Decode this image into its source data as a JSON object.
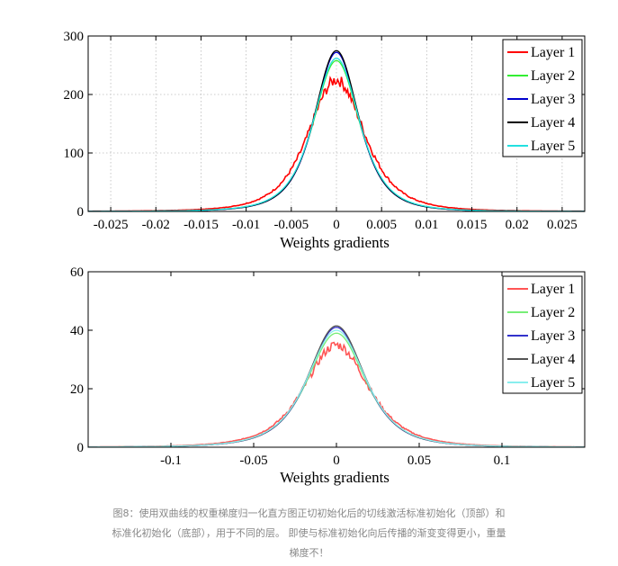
{
  "chart_data": [
    {
      "type": "line",
      "title": "",
      "xlabel": "Weights gradients",
      "ylabel": "",
      "xlim": [
        -0.0275,
        0.0275
      ],
      "ylim": [
        0,
        300
      ],
      "x_ticks": [
        -0.025,
        -0.02,
        -0.015,
        -0.01,
        -0.005,
        0,
        0.005,
        0.01,
        0.015,
        0.02,
        0.025
      ],
      "x_tick_labels": [
        "-0.025",
        "-0.02",
        "-0.015",
        "-0.01",
        "-0.005",
        "0",
        "0.005",
        "0.01",
        "0.015",
        "0.02",
        "0.025"
      ],
      "y_ticks": [
        0,
        100,
        200,
        300
      ],
      "y_tick_labels": [
        "0",
        "100",
        "200",
        "300"
      ],
      "grid": true,
      "legend_position": "top-right",
      "series": [
        {
          "name": "Layer 1",
          "color": "#ff0000",
          "peak": 225,
          "width": 0.0033,
          "noisy": true
        },
        {
          "name": "Layer 2",
          "color": "#33ee33",
          "peak": 258,
          "width": 0.0027,
          "noisy": false
        },
        {
          "name": "Layer 3",
          "color": "#0000cc",
          "peak": 272,
          "width": 0.0026,
          "noisy": false
        },
        {
          "name": "Layer 4",
          "color": "#000000",
          "peak": 275,
          "width": 0.0026,
          "noisy": false
        },
        {
          "name": "Layer 5",
          "color": "#22e0e0",
          "peak": 262,
          "width": 0.0027,
          "noisy": false
        }
      ]
    },
    {
      "type": "line",
      "title": "",
      "xlabel": "Weights gradients",
      "ylabel": "",
      "xlim": [
        -0.15,
        0.15
      ],
      "ylim": [
        0,
        60
      ],
      "x_ticks": [
        -0.1,
        -0.05,
        0,
        0.05,
        0.1
      ],
      "x_tick_labels": [
        "-0.1",
        "-0.05",
        "0",
        "0.05",
        "0.1"
      ],
      "y_ticks": [
        0,
        20,
        40,
        60
      ],
      "y_tick_labels": [
        "0",
        "20",
        "40",
        "60"
      ],
      "grid": false,
      "legend_position": "top-right",
      "series": [
        {
          "name": "Layer 1",
          "color": "#ff5555",
          "peak": 35,
          "width": 0.0205,
          "noisy": true
        },
        {
          "name": "Layer 2",
          "color": "#77ee77",
          "peak": 39,
          "width": 0.0185,
          "noisy": false
        },
        {
          "name": "Layer 3",
          "color": "#3333cc",
          "peak": 41,
          "width": 0.018,
          "noisy": false
        },
        {
          "name": "Layer 4",
          "color": "#555555",
          "peak": 41.5,
          "width": 0.018,
          "noisy": false
        },
        {
          "name": "Layer 5",
          "color": "#88eeee",
          "peak": 40,
          "width": 0.0185,
          "noisy": false
        }
      ]
    }
  ],
  "caption": {
    "line1": "图8：使用双曲线的权重梯度归一化直方图正切初始化后的切线激活标准初始化（顶部）和",
    "line2": "标准化初始化（底部），用于不同的层。 即使与标准初始化向后传播的渐变变得更小，重量",
    "line3": "梯度不！"
  }
}
